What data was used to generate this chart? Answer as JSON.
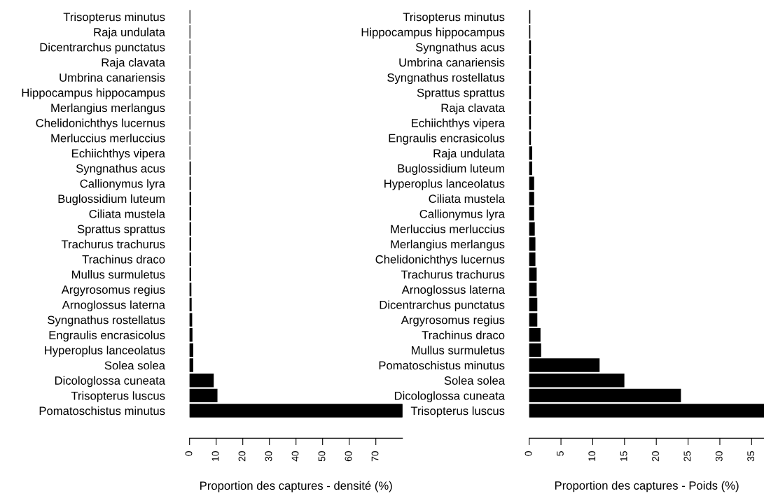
{
  "chart_data": [
    {
      "type": "bar",
      "orientation": "horizontal",
      "xlabel": "Proportion des captures - densité (%)",
      "categories": [
        "Trisopterus minutus",
        "Raja undulata",
        "Dicentrarchus punctatus",
        "Raja clavata",
        "Umbrina canariensis",
        "Hippocampus hippocampus",
        "Merlangius merlangus",
        "Chelidonichthys lucernus",
        "Merluccius merluccius",
        "Echiichthys vipera",
        "Syngnathus acus",
        "Callionymus lyra",
        "Buglossidium luteum",
        "Ciliata mustela",
        "Sprattus sprattus",
        "Trachurus trachurus",
        "Trachinus draco",
        "Mullus surmuletus",
        "Argyrosomus regius",
        "Arnoglossus laterna",
        "Syngnathus rostellatus",
        "Engraulis encrasicolus",
        "Hyperoplus lanceolatus",
        "Solea solea",
        "Dicologlossa cuneata",
        "Trisopterus luscus",
        "Pomatoschistus minutus"
      ],
      "values": [
        0.1,
        0.1,
        0.1,
        0.1,
        0.1,
        0.1,
        0.1,
        0.1,
        0.1,
        0.1,
        0.3,
        0.3,
        0.4,
        0.4,
        0.4,
        0.4,
        0.4,
        0.4,
        0.5,
        0.6,
        0.8,
        0.9,
        1.2,
        1.2,
        8.9,
        10.3,
        80
      ],
      "color": "#000000",
      "xlim": [
        0,
        80
      ],
      "xticks": [
        0,
        10,
        20,
        30,
        40,
        50,
        60,
        70
      ]
    },
    {
      "type": "bar",
      "orientation": "horizontal",
      "xlabel": "Proportion des captures - Poids (%)",
      "categories": [
        "Trisopterus minutus",
        "Hippocampus hippocampus",
        "Syngnathus acus",
        "Umbrina canariensis",
        "Syngnathus rostellatus",
        "Sprattus sprattus",
        "Raja clavata",
        "Echiichthys vipera",
        "Engraulis encrasicolus",
        "Raja undulata",
        "Buglossidium luteum",
        "Hyperoplus lanceolatus",
        "Ciliata mustela",
        "Callionymus lyra",
        "Merluccius merluccius",
        "Merlangius merlangus",
        "Chelidonichthys lucernus",
        "Trachurus trachurus",
        "Arnoglossus laterna",
        "Dicentrarchus punctatus",
        "Argyrosomus regius",
        "Trachinus draco",
        "Mullus surmuletus",
        "Pomatoschistus minutus",
        "Solea solea",
        "Dicologlossa cuneata",
        "Trisopterus luscus"
      ],
      "values": [
        0.1,
        0.1,
        0.2,
        0.2,
        0.2,
        0.2,
        0.2,
        0.2,
        0.2,
        0.4,
        0.4,
        0.7,
        0.7,
        0.7,
        0.8,
        0.9,
        0.9,
        1.1,
        1.1,
        1.2,
        1.2,
        1.7,
        1.8,
        11.0,
        14.9,
        23.8,
        37
      ],
      "color": "#000000",
      "xlim": [
        0,
        37
      ],
      "xticks": [
        0,
        5,
        10,
        15,
        20,
        25,
        30,
        35
      ]
    }
  ]
}
